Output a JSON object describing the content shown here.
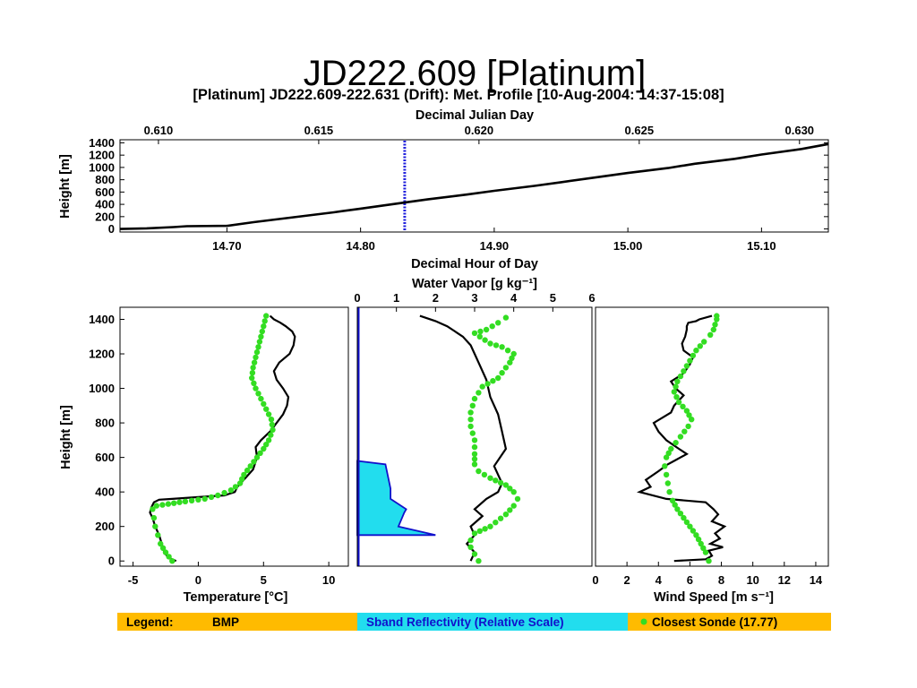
{
  "header": {
    "title": "JD222.609 [Platinum]",
    "subtitle": "[Platinum] JD222.609-222.631 (Drift): Met. Profile [10-Aug-2004: 14:37-15:08]"
  },
  "colors": {
    "bmp": "#000000",
    "sonde": "#33dd22",
    "sband_fill": "#22ddee",
    "sband_line": "#1111cc",
    "marker": "#2222dd",
    "legend_bg": "#ffbb00"
  },
  "legend": {
    "label": "Legend:",
    "bmp": "BMP",
    "sband": "Sband Reflectivity (Relative Scale)",
    "sonde": "Closest Sonde (17.77)"
  },
  "chart_data": [
    {
      "id": "height_vs_time",
      "type": "line",
      "top_xlabel": "Decimal Julian Day",
      "top_ticks": [
        "0.610",
        "0.615",
        "0.620",
        "0.625",
        "0.630"
      ],
      "top_tick_values": [
        0.61,
        0.615,
        0.62,
        0.625,
        0.63
      ],
      "top_xlim": [
        0.6088,
        0.6309
      ],
      "xlabel": "Decimal Hour of Day",
      "x_ticks": [
        "14.70",
        "14.80",
        "14.90",
        "15.00",
        "15.10"
      ],
      "x_tick_values": [
        14.7,
        14.8,
        14.9,
        15.0,
        15.1
      ],
      "xlim": [
        14.62,
        15.15
      ],
      "ylabel": "Height [m]",
      "y_ticks": [
        "0",
        "200",
        "400",
        "600",
        "800",
        "1000",
        "1200",
        "1400"
      ],
      "y_tick_values": [
        0,
        200,
        400,
        600,
        800,
        1000,
        1200,
        1400
      ],
      "ylim": [
        -50,
        1450
      ],
      "series": [
        {
          "x": [
            14.62,
            14.64,
            14.66,
            14.67,
            14.7,
            14.72,
            14.75,
            14.78,
            14.8,
            14.83,
            14.85,
            14.88,
            14.9,
            14.93,
            14.95,
            14.98,
            15.0,
            15.03,
            15.05,
            15.08,
            15.1,
            15.13,
            15.15
          ],
          "y": [
            0,
            10,
            30,
            45,
            50,
            110,
            190,
            270,
            330,
            420,
            480,
            560,
            620,
            700,
            760,
            850,
            910,
            990,
            1060,
            1140,
            1210,
            1300,
            1380
          ]
        }
      ],
      "marker_x": 14.833
    },
    {
      "id": "temperature_profile",
      "type": "line",
      "xlabel": "Temperature [°C]",
      "x_ticks": [
        "-5",
        "0",
        "5",
        "10"
      ],
      "x_tick_values": [
        -5,
        0,
        5,
        10
      ],
      "xlim": [
        -6,
        11.5
      ],
      "ylabel": "Height [m]",
      "y_ticks": [
        "0",
        "200",
        "400",
        "600",
        "800",
        "1000",
        "1200",
        "1400"
      ],
      "y_tick_values": [
        0,
        200,
        400,
        600,
        800,
        1000,
        1200,
        1400
      ],
      "ylim": [
        -30,
        1470
      ],
      "series": [
        {
          "role": "bmp",
          "x": [
            -1.7,
            -2.3,
            -2.6,
            -2.8,
            -3.0,
            -3.3,
            -3.5,
            -3.7,
            -3.6,
            -3.4,
            -3.0,
            -2.0,
            0.0,
            2.0,
            2.8,
            3.0,
            3.6,
            4.2,
            4.5,
            4.4,
            4.8,
            5.5,
            6.0,
            6.5,
            6.8,
            6.9,
            6.5,
            6.0,
            5.8,
            6.2,
            7.0,
            7.3,
            7.4,
            7.2,
            6.7,
            6.3,
            5.8,
            5.5
          ],
          "y": [
            0,
            20,
            50,
            100,
            150,
            200,
            250,
            280,
            310,
            340,
            355,
            360,
            370,
            380,
            400,
            430,
            480,
            530,
            600,
            660,
            700,
            750,
            800,
            850,
            900,
            950,
            1000,
            1050,
            1100,
            1150,
            1200,
            1250,
            1300,
            1330,
            1360,
            1380,
            1400,
            1420
          ]
        },
        {
          "role": "sonde",
          "x": [
            -2.0,
            -2.5,
            -2.9,
            -3.1,
            -3.3,
            -3.4,
            -3.5,
            -3.2,
            -2.3,
            -1.0,
            0.5,
            1.5,
            2.5,
            3.2,
            3.5,
            4.0,
            4.5,
            5.0,
            5.4,
            5.7,
            5.6,
            5.2,
            4.8,
            4.4,
            4.1,
            4.2,
            4.4,
            4.6,
            4.8,
            5.0,
            5.2
          ],
          "y": [
            0,
            50,
            100,
            150,
            200,
            250,
            300,
            320,
            330,
            345,
            360,
            380,
            410,
            450,
            500,
            550,
            600,
            650,
            700,
            760,
            820,
            880,
            940,
            1000,
            1060,
            1120,
            1180,
            1240,
            1300,
            1360,
            1420
          ]
        }
      ]
    },
    {
      "id": "water_vapor_profile",
      "type": "line",
      "top_xlabel": "Water Vapor [g kg⁻¹]",
      "top_ticks": [
        "0",
        "1",
        "2",
        "3",
        "4",
        "5",
        "6"
      ],
      "top_tick_values": [
        0,
        1,
        2,
        3,
        4,
        5,
        6
      ],
      "xlim": [
        0,
        6
      ],
      "ylim": [
        -30,
        1470
      ],
      "series": [
        {
          "role": "bmp",
          "x": [
            2.9,
            3.0,
            2.8,
            3.0,
            2.9,
            3.1,
            3.2,
            3.0,
            3.3,
            3.6,
            3.7,
            3.6,
            3.5,
            3.8,
            3.7,
            3.6,
            3.4,
            3.3,
            3.1,
            3.0,
            2.9,
            2.7,
            2.5,
            2.3,
            2.0,
            1.6
          ],
          "y": [
            0,
            50,
            100,
            150,
            200,
            240,
            260,
            300,
            360,
            400,
            450,
            500,
            550,
            650,
            750,
            850,
            950,
            1050,
            1150,
            1200,
            1250,
            1300,
            1330,
            1360,
            1390,
            1420
          ]
        },
        {
          "role": "sonde",
          "x": [
            3.1,
            3.0,
            2.9,
            2.9,
            3.0,
            3.4,
            3.8,
            4.0,
            4.1,
            4.0,
            3.8,
            3.4,
            3.1,
            3.0,
            3.0,
            3.0,
            2.9,
            2.9,
            3.0,
            3.2,
            3.6,
            3.9,
            4.0,
            3.7,
            3.4,
            3.0,
            3.3,
            3.6,
            3.8
          ],
          "y": [
            0,
            40,
            80,
            120,
            160,
            200,
            270,
            320,
            360,
            400,
            440,
            480,
            520,
            560,
            620,
            700,
            780,
            860,
            940,
            1010,
            1060,
            1150,
            1200,
            1240,
            1260,
            1320,
            1340,
            1380,
            1410
          ]
        },
        {
          "role": "sband",
          "x": [
            0,
            2.0,
            1.05,
            1.2,
            1.25,
            0.85,
            0.85,
            0.72,
            0.0
          ],
          "y": [
            150,
            150,
            200,
            280,
            300,
            360,
            420,
            560,
            580
          ]
        }
      ]
    },
    {
      "id": "wind_speed_profile",
      "type": "line",
      "xlabel": "Wind Speed [m s⁻¹]",
      "x_ticks": [
        "0",
        "2",
        "4",
        "6",
        "8",
        "10",
        "12",
        "14"
      ],
      "x_tick_values": [
        0,
        2,
        4,
        6,
        8,
        10,
        12,
        14
      ],
      "xlim": [
        0,
        14.8
      ],
      "ylim": [
        -30,
        1470
      ],
      "series": [
        {
          "role": "bmp",
          "x": [
            5.0,
            7.0,
            7.4,
            7.2,
            8.1,
            7.3,
            7.9,
            7.6,
            8.2,
            7.4,
            7.8,
            7.5,
            7.0,
            4.5,
            2.8,
            3.5,
            3.2,
            4.0,
            4.6,
            5.0,
            5.8,
            5.3,
            4.5,
            4.0,
            3.7,
            4.8,
            5.0,
            5.6,
            5.1,
            4.8,
            5.5,
            5.7,
            6.0,
            6.2,
            5.6,
            5.5,
            5.7,
            5.8,
            5.8,
            5.9,
            6.4,
            6.6,
            7.4
          ],
          "y": [
            0,
            10,
            30,
            60,
            80,
            100,
            130,
            160,
            200,
            230,
            270,
            300,
            340,
            360,
            400,
            430,
            470,
            520,
            560,
            580,
            620,
            650,
            700,
            750,
            800,
            860,
            900,
            960,
            1000,
            1040,
            1080,
            1100,
            1140,
            1180,
            1220,
            1260,
            1300,
            1340,
            1360,
            1380,
            1390,
            1400,
            1420
          ]
        },
        {
          "role": "sonde",
          "x": [
            7.2,
            7.0,
            6.7,
            6.4,
            6.0,
            5.6,
            5.2,
            4.9,
            4.7,
            4.6,
            4.5,
            4.4,
            4.5,
            4.8,
            5.4,
            5.9,
            6.1,
            5.8,
            5.3,
            5.0,
            5.2,
            5.6,
            6.0,
            6.4,
            6.9,
            7.3,
            7.5,
            7.6,
            7.7,
            7.7
          ],
          "y": [
            0,
            50,
            100,
            150,
            200,
            250,
            300,
            350,
            400,
            450,
            500,
            550,
            600,
            650,
            720,
            780,
            820,
            870,
            920,
            980,
            1040,
            1100,
            1160,
            1220,
            1270,
            1310,
            1340,
            1370,
            1400,
            1420
          ]
        }
      ]
    }
  ]
}
